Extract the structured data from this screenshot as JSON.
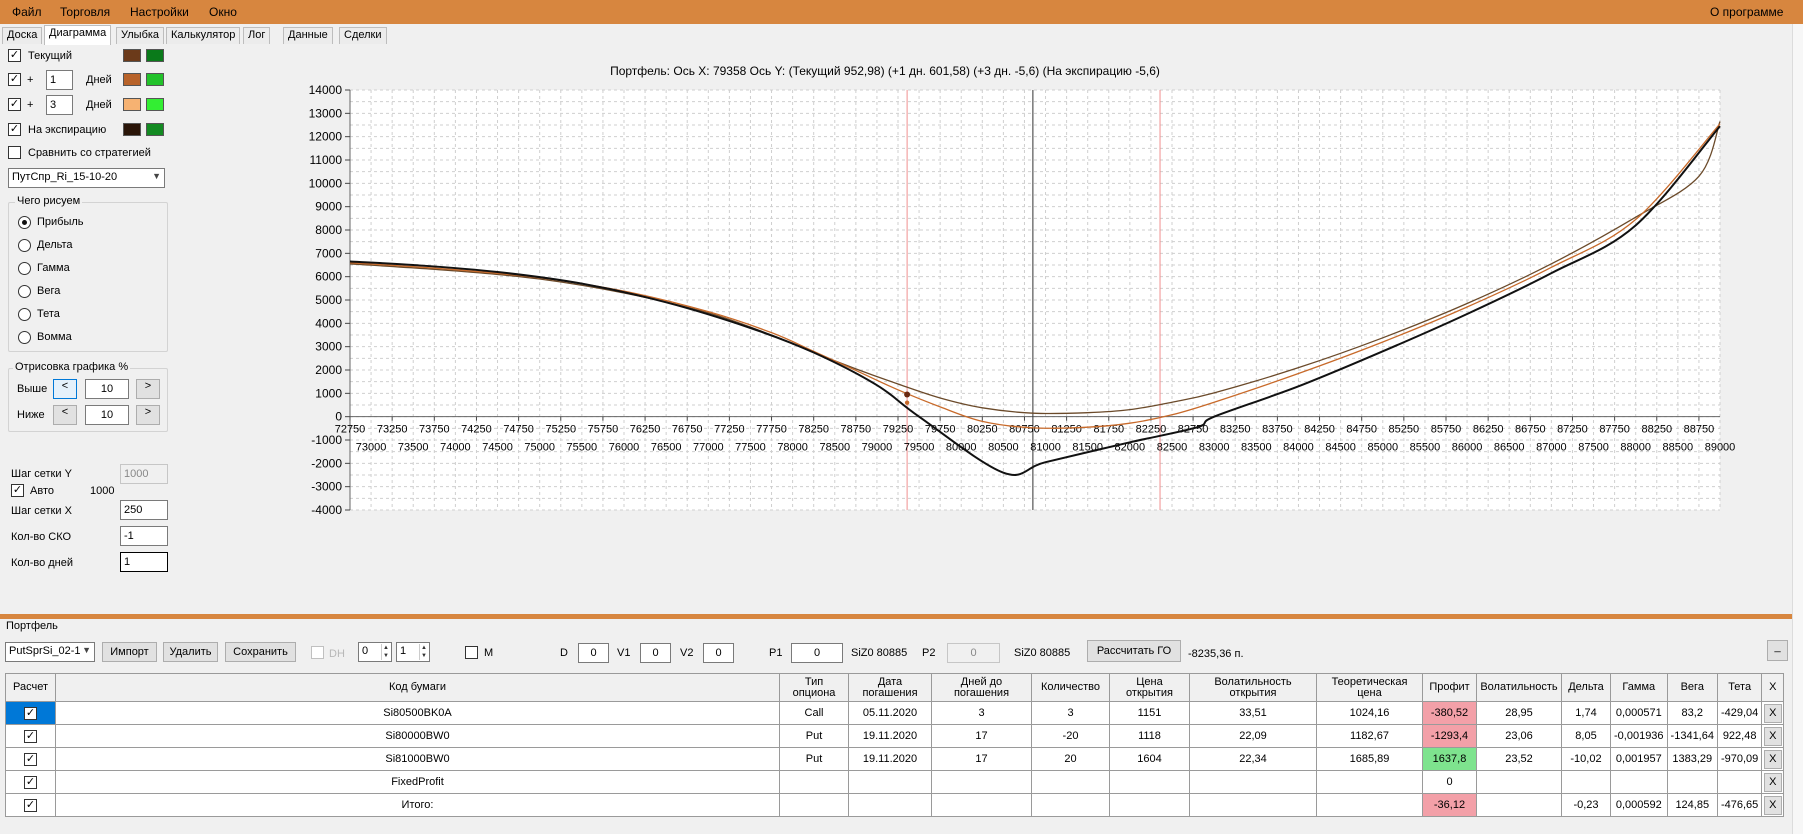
{
  "menu": {
    "items": [
      "Файл",
      "Торговля",
      "Настройки",
      "Окно"
    ],
    "about": "О программе"
  },
  "tabs": [
    "Доска",
    "Диаграмма",
    "Улыбка",
    "Калькулятор",
    "Лог",
    "Данные",
    "Сделки"
  ],
  "left": {
    "current_label": "Текущий",
    "plus": "+",
    "days1": "1",
    "days2": "3",
    "days_label": "Дней",
    "expiry_label": "На экспирацию",
    "compare_label": "Сравнить со стратегией",
    "strategy": "ПутСпр_Ri_15-10-20",
    "draw_group": "Чего рисуем",
    "options": [
      "Прибыль",
      "Дельта",
      "Гамма",
      "Вега",
      "Тета",
      "Вомма"
    ],
    "render_group": "Отрисовка графика %",
    "above_label": "Выше",
    "below_label": "Ниже",
    "above_val": "10",
    "below_val": "10",
    "btn_less": "<",
    "btn_more": ">",
    "grid_y_label": "Шаг сетки Y",
    "grid_y_val": "1000",
    "auto_label": "Авто",
    "auto_val": "1000",
    "grid_x_label": "Шаг сетки X",
    "grid_x_val": "250",
    "sko_label": "Кол-во СКО",
    "sko_val": "-1",
    "days_count_label": "Кол-во дней",
    "days_count_val": "1"
  },
  "colors": {
    "current_a": "#6b3a1a",
    "current_b": "#0a7a1a",
    "d1_a": "#b8632a",
    "d1_b": "#22c22a",
    "d3_a": "#f6b272",
    "d3_b": "#33ee33",
    "exp_a": "#2a1508",
    "exp_b": "#138a22"
  },
  "chart_title": "Портфель: Ось X: 79358 Ось Y:  (Текущий 952,98)  (+1 дн. 601,58)  (+3 дн. -5,6)  (На экспирацию -5,6)",
  "chart_data": {
    "type": "line",
    "xlim": [
      72750,
      89000
    ],
    "ylim": [
      -4000,
      14000
    ],
    "x_step": 250,
    "y_step": 1000,
    "x_ticks_top": [
      "72750",
      "73250",
      "73750",
      "74250",
      "74750",
      "75250",
      "75750",
      "76250",
      "76750",
      "77250",
      "77750",
      "78250",
      "78750",
      "79250",
      "79750",
      "80250",
      "80750",
      "81250",
      "81750",
      "82250",
      "82750",
      "83250",
      "83750",
      "84250",
      "84750",
      "85250",
      "85750",
      "86250",
      "86750",
      "87250",
      "87750",
      "88250",
      "88750"
    ],
    "x_ticks_bottom": [
      "73000",
      "73500",
      "74000",
      "74500",
      "75000",
      "75500",
      "76000",
      "76500",
      "77000",
      "77500",
      "78000",
      "78500",
      "79000",
      "79500",
      "80000",
      "80500",
      "81000",
      "81500",
      "82000",
      "82500",
      "83000",
      "83500",
      "84000",
      "84500",
      "85000",
      "85500",
      "86000",
      "86500",
      "87000",
      "87500",
      "88000",
      "88500",
      "89000"
    ],
    "y_ticks": [
      "14000",
      "13000",
      "12000",
      "11000",
      "10000",
      "9000",
      "8000",
      "7000",
      "6000",
      "5000",
      "4000",
      "3000",
      "2000",
      "1000",
      "0",
      "-1000",
      "-2000",
      "-3000",
      "-4000"
    ],
    "vertical_lines": {
      "red": [
        79358,
        82358
      ],
      "black": 80850
    },
    "series": [
      {
        "color": "#6b4a2a",
        "points": [
          [
            72750,
            6550
          ],
          [
            74000,
            6250
          ],
          [
            75000,
            5900
          ],
          [
            76000,
            5300
          ],
          [
            77000,
            4450
          ],
          [
            77750,
            3500
          ],
          [
            78250,
            2750
          ],
          [
            78750,
            2050
          ],
          [
            79250,
            1400
          ],
          [
            79750,
            800
          ],
          [
            80250,
            380
          ],
          [
            80850,
            150
          ],
          [
            81500,
            170
          ],
          [
            82000,
            300
          ],
          [
            82500,
            620
          ],
          [
            83000,
            1020
          ],
          [
            84000,
            2100
          ],
          [
            85000,
            3380
          ],
          [
            86000,
            4850
          ],
          [
            87000,
            6550
          ],
          [
            88000,
            8550
          ],
          [
            88750,
            10300
          ],
          [
            89000,
            12650
          ]
        ]
      },
      {
        "color": "#c86a2a",
        "points": [
          [
            72750,
            6600
          ],
          [
            74000,
            6300
          ],
          [
            75000,
            5950
          ],
          [
            76000,
            5380
          ],
          [
            77000,
            4500
          ],
          [
            77750,
            3600
          ],
          [
            78250,
            2800
          ],
          [
            78750,
            1980
          ],
          [
            79250,
            1150
          ],
          [
            79750,
            420
          ],
          [
            80250,
            -200
          ],
          [
            80850,
            -480
          ],
          [
            81500,
            -450
          ],
          [
            82000,
            -280
          ],
          [
            82500,
            80
          ],
          [
            83000,
            620
          ],
          [
            84000,
            1850
          ],
          [
            85000,
            3200
          ],
          [
            86000,
            4700
          ],
          [
            87000,
            6400
          ],
          [
            88000,
            8450
          ],
          [
            89000,
            12550
          ]
        ]
      },
      {
        "color": "#111111",
        "points": [
          [
            72750,
            6650
          ],
          [
            73500,
            6500
          ],
          [
            74500,
            6200
          ],
          [
            75500,
            5700
          ],
          [
            76500,
            4900
          ],
          [
            77500,
            3800
          ],
          [
            78250,
            2750
          ],
          [
            79000,
            1350
          ],
          [
            79500,
            0
          ],
          [
            80500,
            -2400
          ],
          [
            81000,
            -1950
          ],
          [
            82000,
            -1100
          ],
          [
            82800,
            -450
          ],
          [
            83000,
            0
          ],
          [
            84000,
            1300
          ],
          [
            85000,
            2800
          ],
          [
            86000,
            4400
          ],
          [
            87000,
            6150
          ],
          [
            88000,
            8200
          ],
          [
            89000,
            12450
          ]
        ]
      }
    ],
    "markers": [
      [
        79358,
        950
      ],
      [
        79358,
        600
      ]
    ]
  },
  "portfolio": {
    "title": "Портфель",
    "select": "PutSprSi_02-1",
    "import": "Импорт",
    "delete": "Удалить",
    "save": "Сохранить",
    "dh": "DH",
    "spin1": "0",
    "spin2": "1",
    "m": "M",
    "d_label": "D",
    "d_val": "0",
    "v1_label": "V1",
    "v1_val": "0",
    "v2_label": "V2",
    "v2_val": "0",
    "p1_label": "P1",
    "p1_val": "0",
    "p1_sec": "SiZ0 80885",
    "p2_label": "P2",
    "p2_val": "0",
    "p2_sec": "SiZ0 80885",
    "calc_go": "Рассчитать ГО",
    "go_val": "-8235,36 п.",
    "collapse": "_",
    "headers": [
      "Расчет",
      "Код бумаги",
      "Тип опциона",
      "Дата погашения",
      "Дней до погашения",
      "Количество",
      "Цена открытия",
      "Волатильность открытия",
      "Теоретическая цена",
      "Профит",
      "Волатильность",
      "Дельта",
      "Гамма",
      "Вега",
      "Тета",
      "X"
    ],
    "rows": [
      {
        "check": "✓",
        "code": "Si80500BK0A",
        "type": "Call",
        "date": "05.11.2020",
        "days": "3",
        "qty": "3",
        "open": "1151",
        "vol_open": "33,51",
        "theor": "1024,16",
        "profit": "-380,52",
        "vol": "28,95",
        "delta": "1,74",
        "gamma": "0,000571",
        "vega": "83,2",
        "theta": "-429,04",
        "x": "X"
      },
      {
        "check": "✓",
        "code": "Si80000BW0",
        "type": "Put",
        "date": "19.11.2020",
        "days": "17",
        "qty": "-20",
        "open": "1118",
        "vol_open": "22,09",
        "theor": "1182,67",
        "profit": "-1293,4",
        "vol": "23,06",
        "delta": "8,05",
        "gamma": "-0,001936",
        "vega": "-1341,64",
        "theta": "922,48",
        "x": "X"
      },
      {
        "check": "✓",
        "code": "Si81000BW0",
        "type": "Put",
        "date": "19.11.2020",
        "days": "17",
        "qty": "20",
        "open": "1604",
        "vol_open": "22,34",
        "theor": "1685,89",
        "profit": "1637,8",
        "vol": "23,52",
        "delta": "-10,02",
        "gamma": "0,001957",
        "vega": "1383,29",
        "theta": "-970,09",
        "x": "X"
      },
      {
        "check": "✓",
        "code": "FixedProfit",
        "type": "",
        "date": "",
        "days": "",
        "qty": "",
        "open": "",
        "vol_open": "",
        "theor": "",
        "profit": "0",
        "vol": "",
        "delta": "",
        "gamma": "",
        "vega": "",
        "theta": "",
        "x": "X"
      },
      {
        "check": "✓",
        "code": "Итого:",
        "type": "",
        "date": "",
        "days": "",
        "qty": "",
        "open": "",
        "vol_open": "",
        "theor": "",
        "profit": "-36,12",
        "vol": "",
        "delta": "-0,23",
        "gamma": "0,000592",
        "vega": "124,85",
        "theta": "-476,65",
        "x": "X"
      }
    ]
  }
}
